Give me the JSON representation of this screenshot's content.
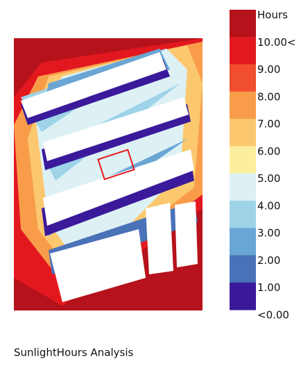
{
  "legend": {
    "title": "Hours",
    "items": [
      {
        "label": "10.00<",
        "color": "#b5121b"
      },
      {
        "label": "9.00",
        "color": "#e3181f"
      },
      {
        "label": "8.00",
        "color": "#f04e2f"
      },
      {
        "label": "7.00",
        "color": "#f99c4a"
      },
      {
        "label": "6.00",
        "color": "#fbc870"
      },
      {
        "label": "5.00",
        "color": "#fbee9e"
      },
      {
        "label": "4.00",
        "color": "#ddf1f5"
      },
      {
        "label": "3.00",
        "color": "#9ed3e8"
      },
      {
        "label": "2.00",
        "color": "#6aa6d4"
      },
      {
        "label": "1.00",
        "color": "#4a72b8"
      },
      {
        "label": "<0.00",
        "color": "#3a1a9a"
      }
    ]
  },
  "caption": "SunlightHours Analysis"
}
